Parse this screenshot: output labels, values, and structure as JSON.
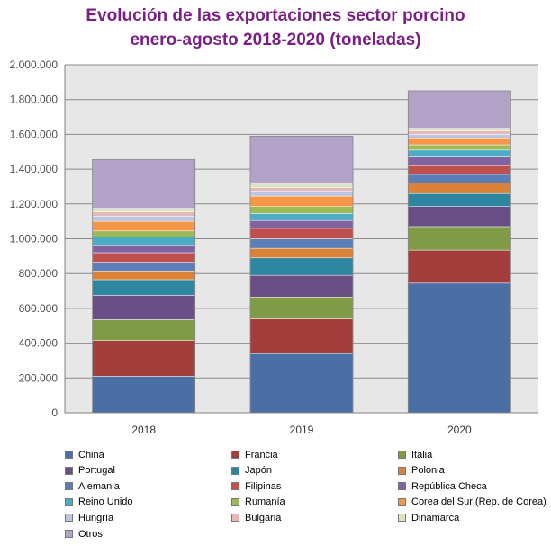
{
  "chart_data": {
    "type": "bar",
    "stacked": true,
    "title_line1": "Evolución de las exportaciones sector porcino",
    "title_line2": "enero-agosto  2018-2020 (toneladas)",
    "xlabel": "",
    "ylabel": "",
    "categories": [
      "2018",
      "2019",
      "2020"
    ],
    "ylim": [
      0,
      2000000
    ],
    "yticks": [
      0,
      200000,
      400000,
      600000,
      800000,
      1000000,
      1200000,
      1400000,
      1600000,
      1800000,
      2000000
    ],
    "ytick_labels": [
      "0",
      "200.000",
      "400.000",
      "600.000",
      "800.000",
      "1.000.000",
      "1.200.000",
      "1.400.000",
      "1.600.000",
      "1.800.000",
      "2.000.000"
    ],
    "grid": true,
    "legend_position": "bottom",
    "series": [
      {
        "name": "China",
        "color": "#4a6fa5",
        "values": [
          210000,
          340000,
          745000
        ]
      },
      {
        "name": "Francia",
        "color": "#a33e3c",
        "values": [
          205000,
          200000,
          190000
        ]
      },
      {
        "name": " Italia",
        "color": "#7f9b45",
        "values": [
          120000,
          125000,
          135000
        ]
      },
      {
        "name": "Portugal",
        "color": "#6a4f86",
        "values": [
          140000,
          125000,
          115000
        ]
      },
      {
        "name": " Japón",
        "color": "#2f86a0",
        "values": [
          90000,
          100000,
          75000
        ]
      },
      {
        "name": "Polonia",
        "color": "#d98238",
        "values": [
          50000,
          55000,
          60000
        ]
      },
      {
        "name": "Alemania",
        "color": "#5a7fb8",
        "values": [
          50000,
          55000,
          50000
        ]
      },
      {
        "name": "Filipinas",
        "color": "#c0504d",
        "values": [
          55000,
          60000,
          50000
        ]
      },
      {
        "name": "República Checa",
        "color": "#8064a2",
        "values": [
          45000,
          45000,
          50000
        ]
      },
      {
        "name": "Reino Unido",
        "color": "#4bacc6",
        "values": [
          45000,
          40000,
          40000
        ]
      },
      {
        "name": "Rumanía",
        "color": "#9bbb59",
        "values": [
          35000,
          40000,
          30000
        ]
      },
      {
        "name": "Corea del Sur (Rep. de Corea)",
        "color": "#f79646",
        "values": [
          55000,
          60000,
          35000
        ]
      },
      {
        "name": "Hungría",
        "color": "#b9c6df",
        "values": [
          30000,
          30000,
          25000
        ]
      },
      {
        "name": "Bulgaria",
        "color": "#e6b9b8",
        "values": [
          25000,
          20000,
          20000
        ]
      },
      {
        "name": "Dinamarca",
        "color": "#d7e4bd",
        "values": [
          20000,
          20000,
          15000
        ]
      },
      {
        "name": "Otros",
        "color": "#b3a2c7",
        "values": [
          280000,
          275000,
          215000
        ]
      }
    ]
  }
}
